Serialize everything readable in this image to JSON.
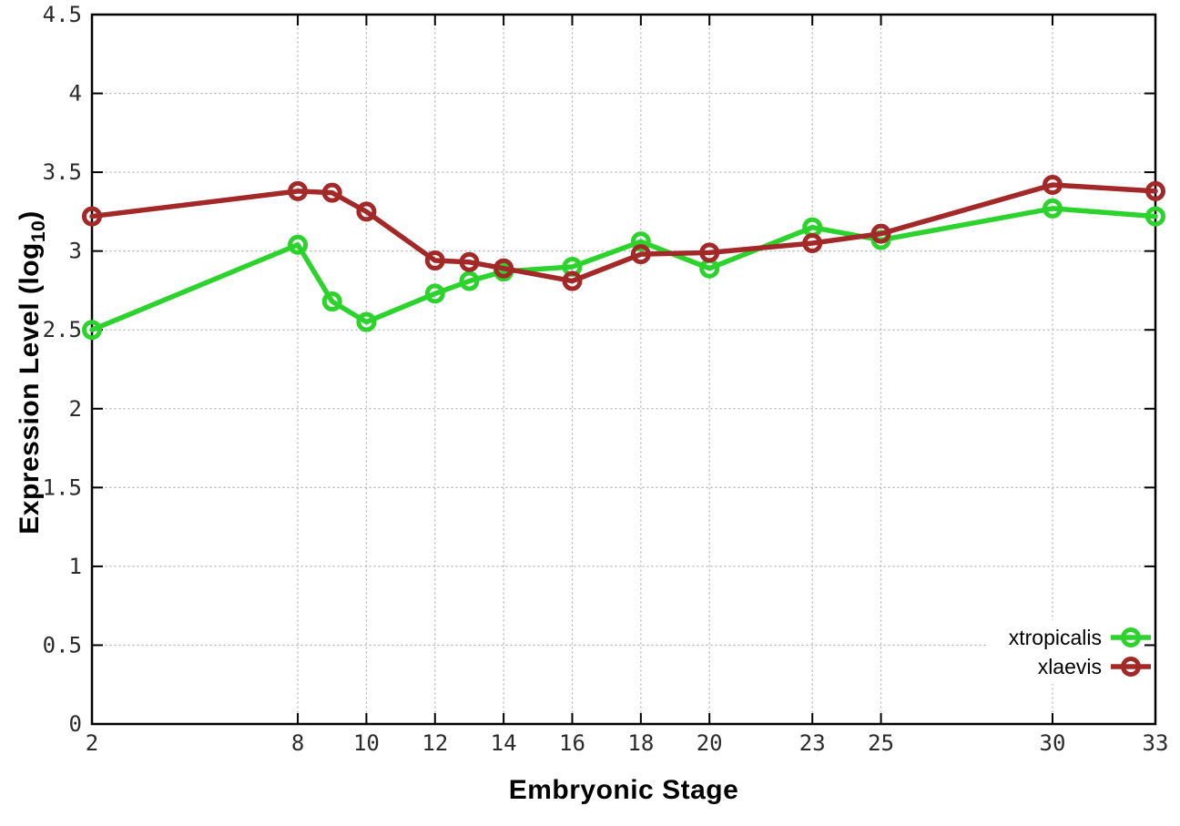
{
  "chart_data": {
    "type": "line",
    "title": "",
    "xlabel": "Embryonic Stage",
    "ylabel": {
      "main": "Expression Level (log",
      "sub": "10",
      "close": ")"
    },
    "ylabel_plain": "Expression Level (log10)",
    "x": [
      2,
      8,
      9,
      10,
      12,
      13,
      14,
      16,
      18,
      20,
      23,
      25,
      30,
      33
    ],
    "series": [
      {
        "name": "xtropicalis",
        "color": "#2dd32d",
        "values": [
          2.5,
          3.04,
          2.68,
          2.55,
          2.73,
          2.81,
          2.87,
          2.9,
          3.06,
          2.89,
          3.15,
          3.07,
          3.27,
          3.22
        ]
      },
      {
        "name": "xlaevis",
        "color": "#a32828",
        "values": [
          3.22,
          3.38,
          3.37,
          3.25,
          2.94,
          2.93,
          2.89,
          2.81,
          2.98,
          2.99,
          3.05,
          3.11,
          3.42,
          3.38
        ]
      }
    ],
    "xlim": [
      2,
      33
    ],
    "ylim": [
      0,
      4.5
    ],
    "xticks": [
      {
        "v": 2,
        "label": "2"
      },
      {
        "v": 8,
        "label": "8"
      },
      {
        "v": 10,
        "label": "10"
      },
      {
        "v": 12,
        "label": "12"
      },
      {
        "v": 14,
        "label": "14"
      },
      {
        "v": 16,
        "label": "16"
      },
      {
        "v": 18,
        "label": "18"
      },
      {
        "v": 20,
        "label": "20"
      },
      {
        "v": 23,
        "label": "23"
      },
      {
        "v": 25,
        "label": "25"
      },
      {
        "v": 30,
        "label": "30"
      },
      {
        "v": 33,
        "label": "33"
      }
    ],
    "yticks": [
      {
        "v": 0,
        "label": "0"
      },
      {
        "v": 0.5,
        "label": "0.5"
      },
      {
        "v": 1,
        "label": "1"
      },
      {
        "v": 1.5,
        "label": "1.5"
      },
      {
        "v": 2,
        "label": "2"
      },
      {
        "v": 2.5,
        "label": "2.5"
      },
      {
        "v": 3,
        "label": "3"
      },
      {
        "v": 3.5,
        "label": "3.5"
      },
      {
        "v": 4,
        "label": "4"
      },
      {
        "v": 4.5,
        "label": "4.5"
      }
    ],
    "grid": true,
    "legend_position": "bottom-right",
    "colors": {
      "grid": "#b4b4b4",
      "border": "#000000",
      "tick_label": "#2a2a2a",
      "background": "#ffffff"
    }
  }
}
